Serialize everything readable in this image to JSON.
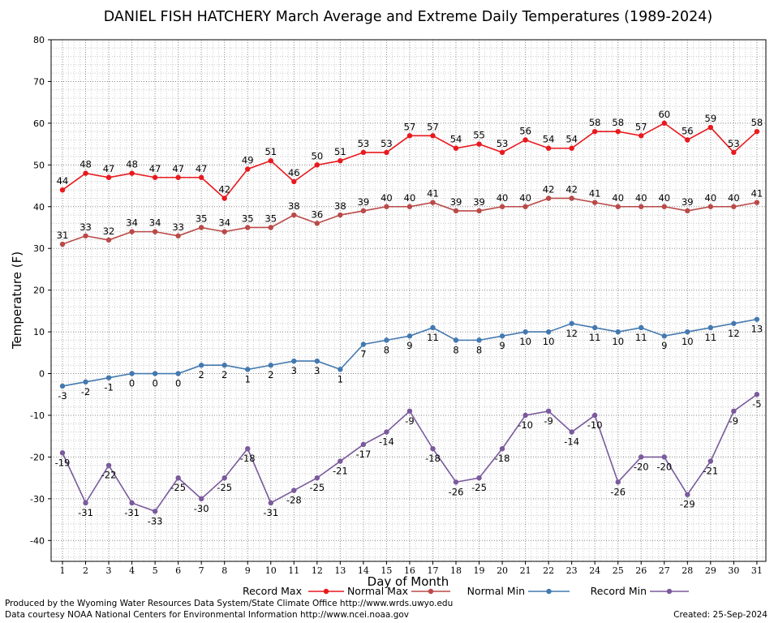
{
  "chart_data": {
    "type": "line",
    "title": "DANIEL FISH HATCHERY March Average and Extreme Daily Temperatures (1989-2024)",
    "xlabel": "Day of Month",
    "ylabel": "Temperature (F)",
    "ylim": [
      -45,
      80
    ],
    "yticks": [
      -40,
      -30,
      -20,
      -10,
      0,
      10,
      20,
      30,
      40,
      50,
      60,
      70,
      80
    ],
    "x": [
      1,
      2,
      3,
      4,
      5,
      6,
      7,
      8,
      9,
      10,
      11,
      12,
      13,
      14,
      15,
      16,
      17,
      18,
      19,
      20,
      21,
      22,
      23,
      24,
      25,
      26,
      27,
      28,
      29,
      30,
      31
    ],
    "grid": true,
    "legend_position": "bottom",
    "series": [
      {
        "name": "Record Max",
        "color": "#e8191e",
        "values": [
          44,
          48,
          47,
          48,
          47,
          47,
          47,
          42,
          49,
          51,
          46,
          50,
          51,
          53,
          53,
          57,
          57,
          54,
          55,
          53,
          56,
          54,
          54,
          58,
          58,
          57,
          60,
          56,
          59,
          53,
          58
        ]
      },
      {
        "name": "Normal Max",
        "color": "#b94a48",
        "values": [
          31,
          33,
          32,
          34,
          34,
          33,
          35,
          34,
          35,
          35,
          38,
          36,
          38,
          39,
          40,
          40,
          41,
          39,
          39,
          40,
          40,
          42,
          42,
          41,
          40,
          40,
          40,
          39,
          40,
          40,
          41
        ]
      },
      {
        "name": "Normal Min",
        "color": "#4479b0",
        "values": [
          -3,
          -2,
          -1,
          0,
          0,
          0,
          2,
          2,
          1,
          2,
          3,
          3,
          1,
          7,
          8,
          9,
          11,
          8,
          8,
          9,
          10,
          10,
          12,
          11,
          10,
          11,
          9,
          10,
          11,
          12,
          13
        ]
      },
      {
        "name": "Record Min",
        "color": "#7a5a9c",
        "values": [
          -19,
          -31,
          -22,
          -31,
          -33,
          -25,
          -30,
          -25,
          -18,
          -31,
          -28,
          -25,
          -21,
          -17,
          -14,
          -9,
          -18,
          -26,
          -25,
          -18,
          -10,
          -9,
          -14,
          -10,
          -26,
          -20,
          -20,
          -29,
          -21,
          -9,
          -5
        ]
      }
    ]
  },
  "footer": {
    "credit_line_1": "Produced by the Wyoming Water Resources Data System/State Climate Office http://www.wrds.uwyo.edu",
    "credit_line_2": "Data courtesy NOAA National Centers for Environmental Information http://www.ncei.noaa.gov",
    "created": "Created:  25-Sep-2024"
  }
}
